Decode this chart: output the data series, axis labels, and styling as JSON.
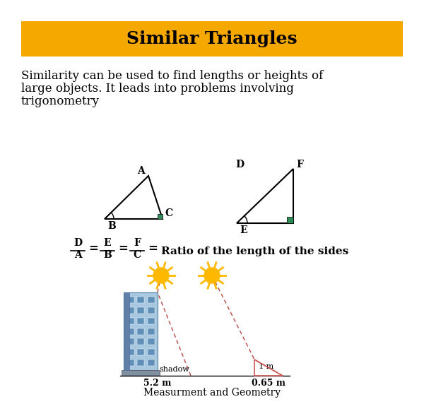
{
  "title": "Similar Triangles",
  "title_bg_color": "#F5A800",
  "title_text_color": "#000000",
  "body_bg_color": "#FFFFFF",
  "subtitle_line1": "Similarity can be used to find lengths or heights of",
  "subtitle_line2": "large objects. It leads into problems involving",
  "subtitle_line3": "trigonometry",
  "footer": "Measurment and Geometry",
  "tri1_label_A": "A",
  "tri1_label_B": "B",
  "tri1_label_C": "C",
  "tri2_label_D": "D",
  "tri2_label_E": "E",
  "tri2_label_F": "F",
  "shadow_label": "shadow",
  "dim1_label": "5.2 m",
  "dim2_label": "0.65 m",
  "stick_label": "1 m",
  "sun_color": "#FFB800",
  "dashed_color": "#BB4444",
  "right_angle_color": "#2E8B57",
  "building_body_color": "#A8C8E0",
  "building_stripe_color": "#6090B8",
  "building_base_color": "#8090A0",
  "stick_color": "#CC5555"
}
